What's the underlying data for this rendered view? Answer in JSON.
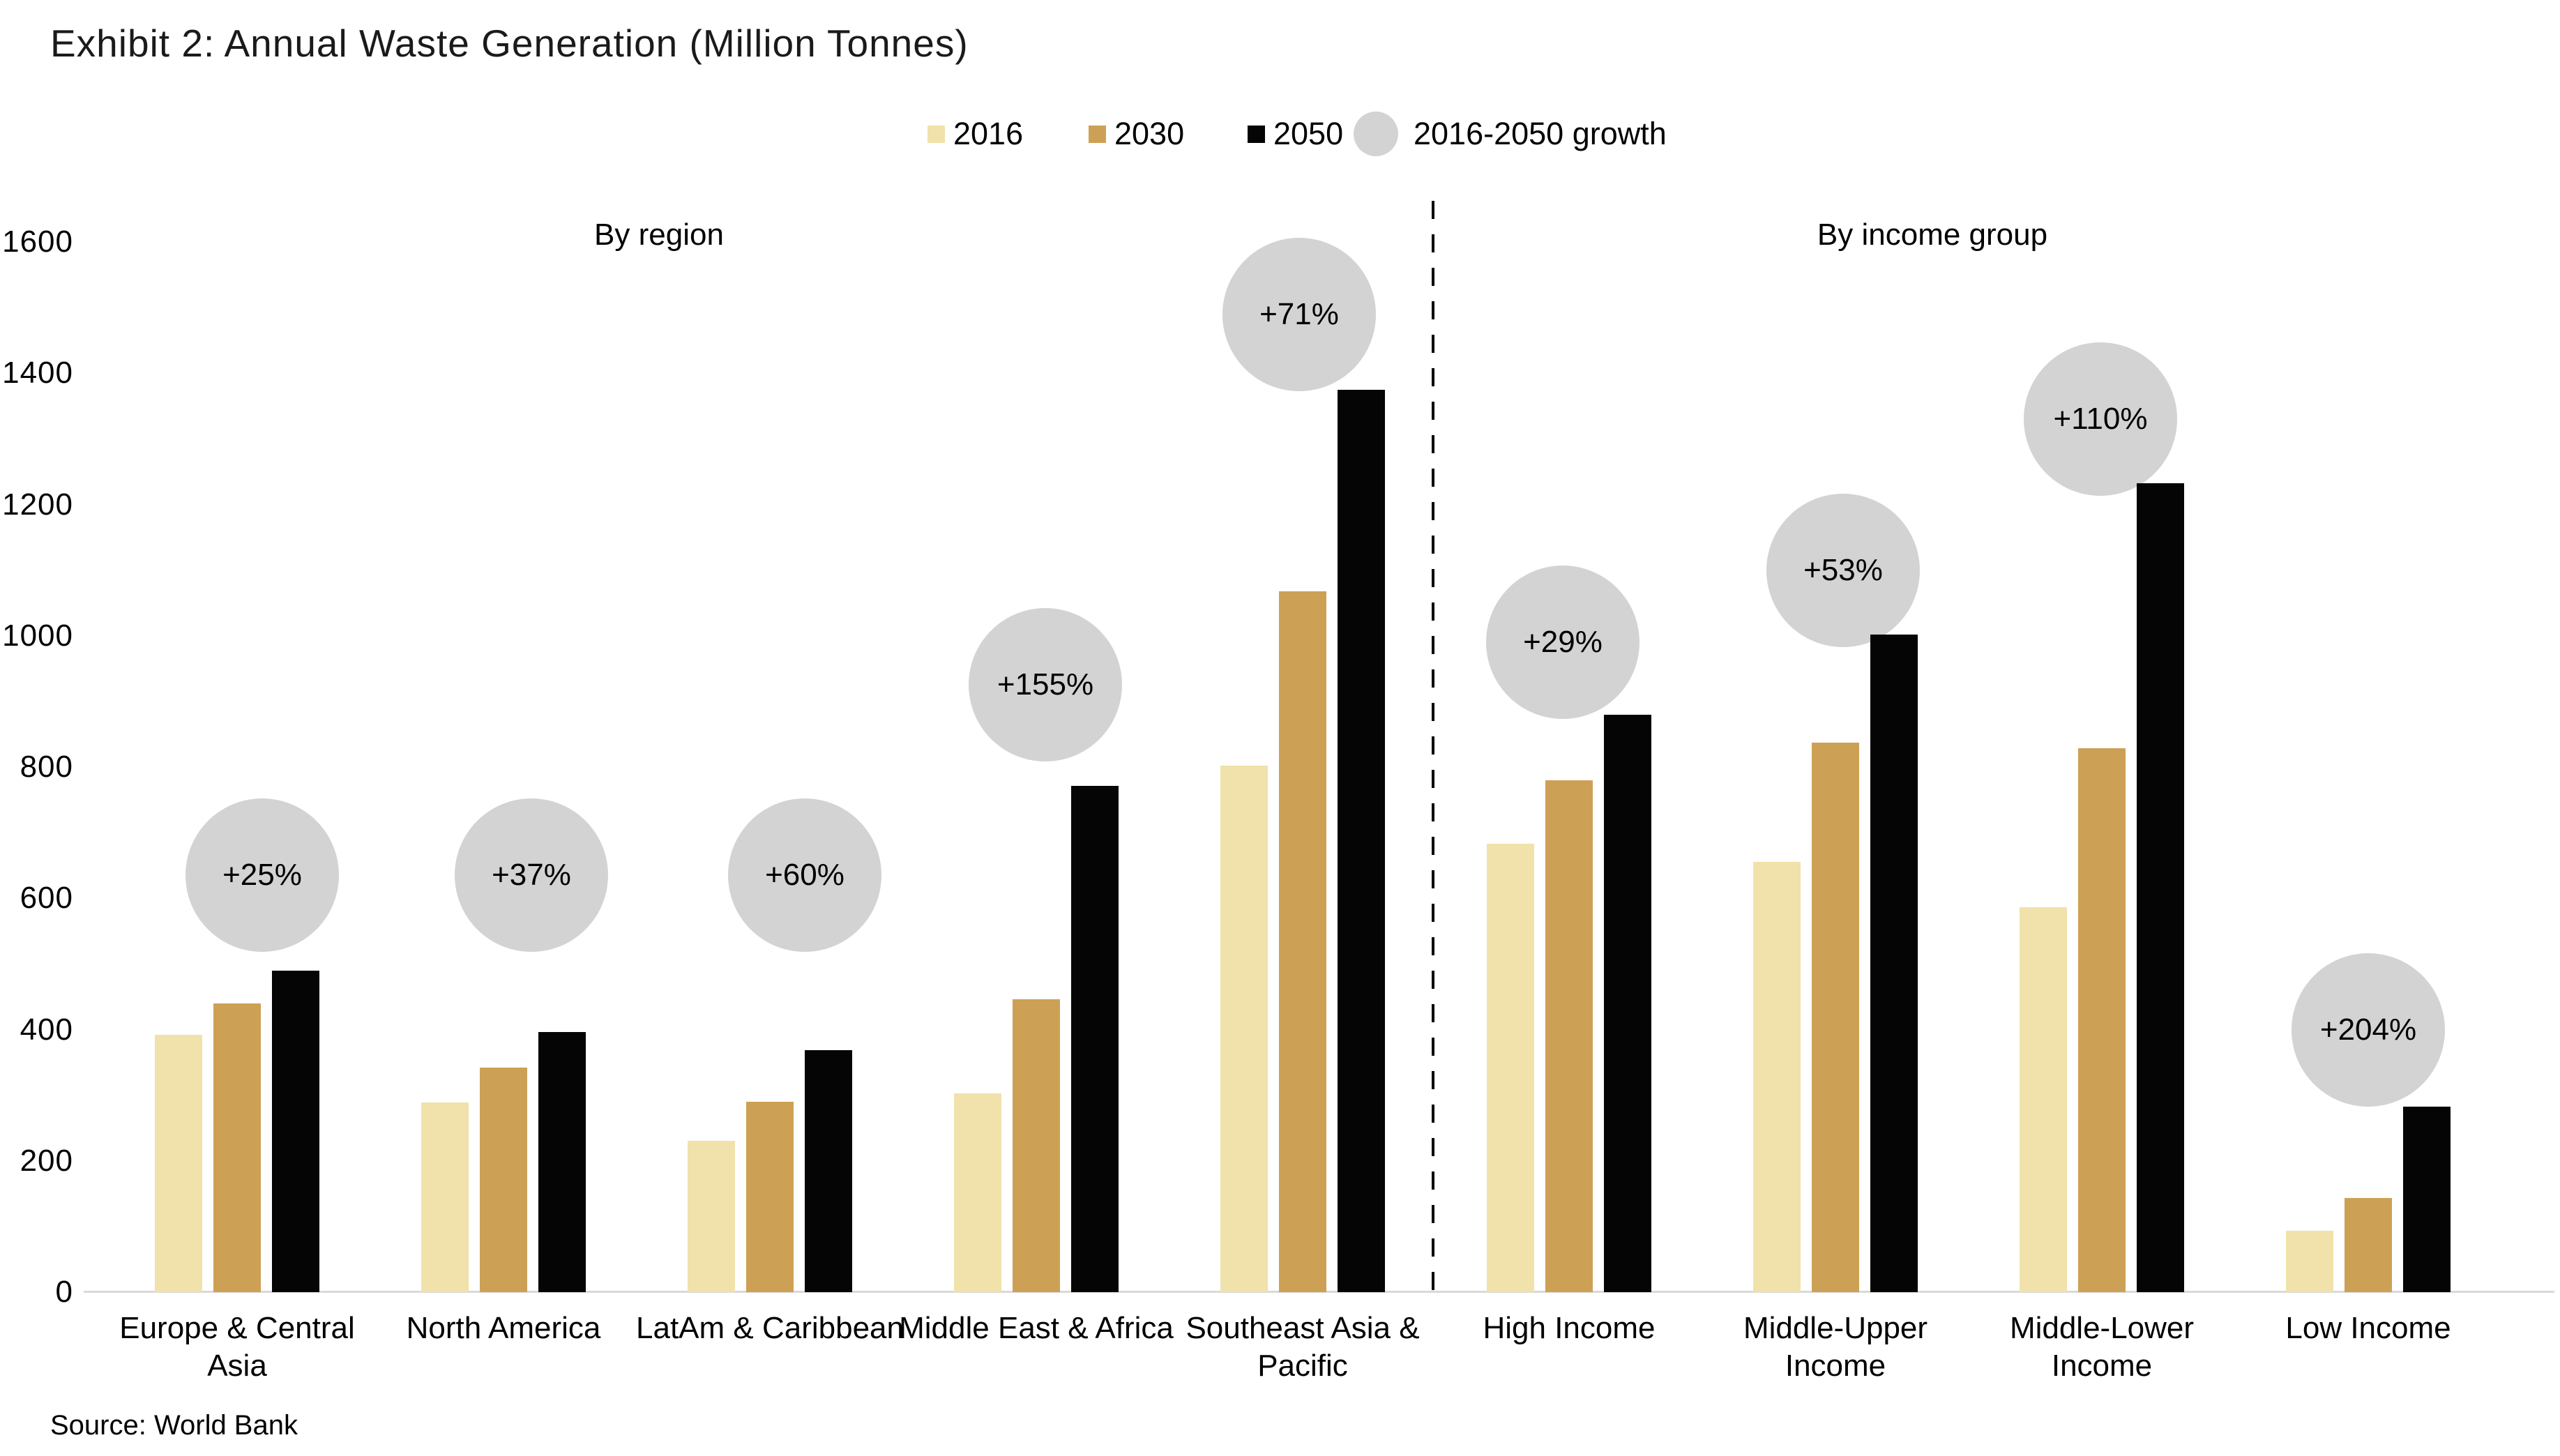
{
  "header": {
    "title": "Exhibit 2: Annual Waste Generation (Million Tonnes)"
  },
  "legend": {
    "items": [
      {
        "label": "2016",
        "color": "#F0E2AA",
        "shape": "square"
      },
      {
        "label": "2030",
        "color": "#CDA155",
        "shape": "square"
      },
      {
        "label": "2050",
        "color": "#050505",
        "shape": "square"
      },
      {
        "label": "2016-2050 growth",
        "color": "#D3D3D3",
        "shape": "circle"
      }
    ]
  },
  "footer": {
    "source": "Source: World Bank"
  },
  "chart_data": {
    "type": "bar",
    "title": "Exhibit 2: Annual Waste Generation (Million Tonnes)",
    "unit": "million tonnes per year",
    "series": [
      "2016",
      "2030",
      "2050"
    ],
    "ylim": [
      0,
      1600
    ],
    "yticks": [
      0,
      200,
      400,
      600,
      800,
      1000,
      1200,
      1400,
      1600
    ],
    "grid": false,
    "legend_position": "top",
    "colors": {
      "2016": "#F0E2AA",
      "2030": "#CDA155",
      "2050": "#050505",
      "bubble": "#D3D3D3",
      "axis": "#D9D9D9"
    },
    "sections": [
      {
        "label": "By region",
        "groups": [
          {
            "category": "Europe & Central Asia",
            "lines": [
              "Europe & Central",
              "Asia"
            ],
            "values": [
              392,
              440,
              490
            ],
            "growth": "+25%",
            "bubble_value": 635,
            "bubble_dx": 36
          },
          {
            "category": "North America",
            "lines": [
              "North America"
            ],
            "values": [
              289,
              342,
              396
            ],
            "growth": "+37%",
            "bubble_value": 635,
            "bubble_dx": 40
          },
          {
            "category": "LatAm & Caribbean",
            "lines": [
              "LatAm & Caribbean"
            ],
            "values": [
              231,
              290,
              369
            ],
            "growth": "+60%",
            "bubble_value": 635,
            "bubble_dx": 50
          },
          {
            "category": "Middle East & Africa",
            "lines": [
              "Middle East & Africa"
            ],
            "values": [
              303,
              446,
              771
            ],
            "growth": "+155%",
            "bubble_value": 925,
            "bubble_dx": 13
          },
          {
            "category": "Southeast Asia & Pacific",
            "lines": [
              "Southeast Asia &",
              "Pacific"
            ],
            "values": [
              802,
              1068,
              1375
            ],
            "growth": "+71%",
            "bubble_value": 1490,
            "bubble_dx": -5
          }
        ]
      },
      {
        "label": "By income group",
        "groups": [
          {
            "category": "High Income",
            "lines": [
              "High Income"
            ],
            "values": [
              683,
              780,
              880
            ],
            "growth": "+29%",
            "bubble_value": 990,
            "bubble_dx": -9
          },
          {
            "category": "Middle-Upper Income",
            "lines": [
              "Middle-Upper",
              "Income"
            ],
            "values": [
              655,
              837,
              1002
            ],
            "growth": "+53%",
            "bubble_value": 1100,
            "bubble_dx": 11
          },
          {
            "category": "Middle-Lower Income",
            "lines": [
              "Middle-Lower",
              "Income"
            ],
            "values": [
              586,
              829,
              1232
            ],
            "growth": "+110%",
            "bubble_value": 1330,
            "bubble_dx": -2
          },
          {
            "category": "Low Income",
            "lines": [
              "Low Income"
            ],
            "values": [
              93,
              143,
              283
            ],
            "growth": "+204%",
            "bubble_value": 400,
            "bubble_dx": 0
          }
        ]
      }
    ]
  }
}
